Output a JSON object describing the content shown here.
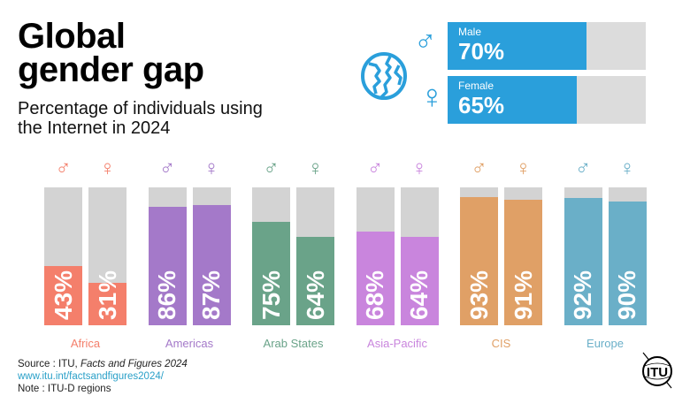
{
  "header": {
    "title_line1": "Global",
    "title_line2": "gender gap",
    "subtitle_line1": "Percentage of individuals using",
    "subtitle_line2": "the Internet in 2024"
  },
  "summary": {
    "icon": "globe-icon",
    "male": {
      "label": "Male",
      "value_text": "70%",
      "value": 70,
      "symbol": "♂"
    },
    "female": {
      "label": "Female",
      "value_text": "65%",
      "value": 65,
      "symbol": "♀"
    },
    "color": "#2a9fdb"
  },
  "footer": {
    "source_prefix": "Source : ITU, ",
    "source_title": "Facts and Figures 2024",
    "link": "www.itu.int/factsandfigures2024/",
    "note": "Note : ITU-D regions",
    "logo_text": "ITU"
  },
  "chart_data": {
    "type": "bar",
    "title": "Global gender gap",
    "subtitle": "Percentage of individuals using the Internet in 2024",
    "xlabel": "",
    "ylabel": "",
    "ylim": [
      0,
      100
    ],
    "categories": [
      "Africa",
      "Americas",
      "Arab States",
      "Asia-Pacific",
      "CIS",
      "Europe"
    ],
    "series": [
      {
        "name": "Male",
        "symbol": "♂",
        "values": [
          43,
          86,
          75,
          68,
          93,
          92
        ]
      },
      {
        "name": "Female",
        "symbol": "♀",
        "values": [
          31,
          87,
          64,
          64,
          91,
          90
        ]
      }
    ],
    "colors": [
      "#f47f6b",
      "#a479c9",
      "#6aa389",
      "#c985dd",
      "#e0a066",
      "#6aafc8"
    ],
    "background_color": "#d3d3d3",
    "grid": false,
    "legend": "none"
  }
}
